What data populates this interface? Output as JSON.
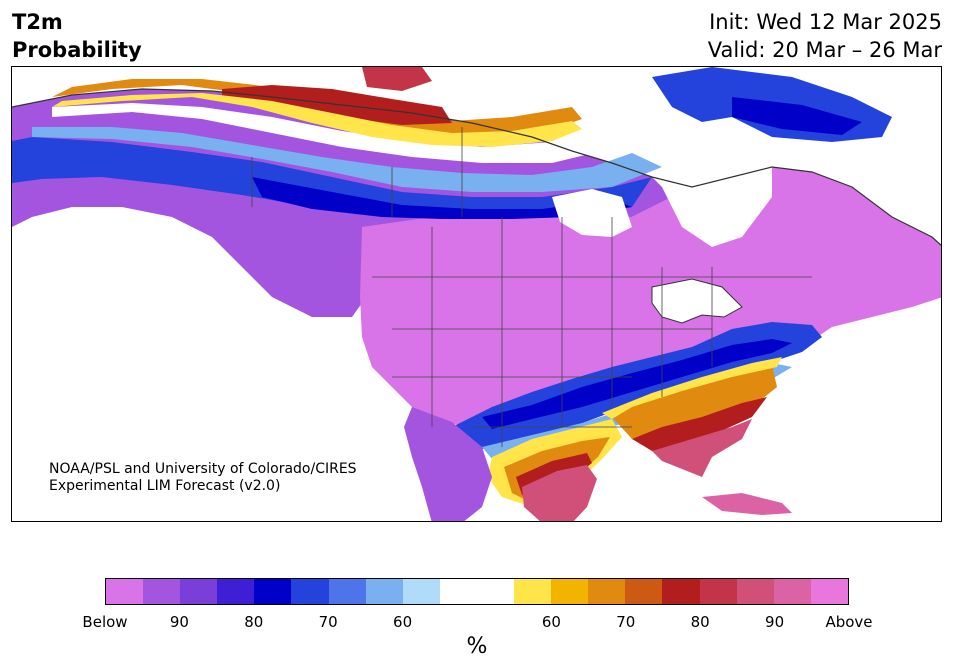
{
  "header": {
    "variable": "T2m",
    "product": "Probability",
    "init": "Init: Wed 12 Mar 2025",
    "valid": "Valid: 20 Mar – 26 Mar"
  },
  "credit": {
    "line1": "NOAA/PSL and University of Colorado/CIRES",
    "line2": "Experimental LIM Forecast (v2.0)"
  },
  "colorbar": {
    "unit": "%",
    "colors": [
      "#d873e8",
      "#a455e0",
      "#7a3fd9",
      "#3f1fd4",
      "#0000c8",
      "#2443dc",
      "#4d74e8",
      "#78b0f0",
      "#b0dcfa",
      "#ffffff",
      "#ffffff",
      "#ffe44a",
      "#f2b400",
      "#e08a10",
      "#cc5a12",
      "#b21e1e",
      "#c43448",
      "#d1507a",
      "#dc62a6",
      "#e876dc"
    ],
    "ticks": [
      "Below",
      "90",
      "80",
      "70",
      "60",
      "60",
      "70",
      "80",
      "90",
      "Above"
    ]
  },
  "map": {
    "region": "North America",
    "palette": {
      "below_strong": "#d873e8",
      "below_mid": "#a455e0",
      "below_deep": "#0000c8",
      "below_blue": "#2443dc",
      "below_light": "#78b0f0",
      "near_normal": "#ffffff",
      "above_yellow": "#ffe44a",
      "above_orange": "#e08a10",
      "above_red": "#b21e1e",
      "above_pink": "#d1507a"
    }
  }
}
